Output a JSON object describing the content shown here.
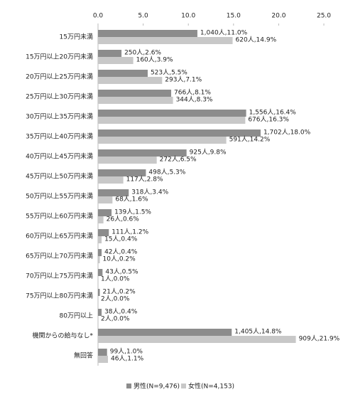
{
  "chart_data": {
    "type": "hbar",
    "categories": [
      "15万円未満",
      "15万円以上20万円未満",
      "20万円以上25万円未満",
      "25万円以上30万円未満",
      "30万円以上35万円未満",
      "35万円以上40万円未満",
      "40万円以上45万円未満",
      "45万円以上50万円未満",
      "50万円以上55万円未満",
      "55万円以上60万円未満",
      "60万円以上65万円未満",
      "65万円以上70万円未満",
      "70万円以上75万円未満",
      "75万円以上80万円未満",
      "80万円以上",
      "機関からの給与なし*",
      "無回答"
    ],
    "series": [
      {
        "name": "男性(N=9,476)",
        "color": "#8c8c8c",
        "values": [
          11.0,
          2.6,
          5.5,
          8.1,
          16.4,
          18.0,
          9.8,
          5.3,
          3.4,
          1.5,
          1.2,
          0.4,
          0.5,
          0.2,
          0.4,
          14.8,
          1.0
        ],
        "value_labels": [
          "1,040人,11.0%",
          "250人,2.6%",
          "523人,5.5%",
          "766人,8.1%",
          "1,556人,16.4%",
          "1,702人,18.0%",
          "925人,9.8%",
          "498人,5.3%",
          "318人,3.4%",
          "139人,1.5%",
          "111人,1.2%",
          "42人,0.4%",
          "43人,0.5%",
          "21人,0.2%",
          "38人,0.4%",
          "1,405人,14.8%",
          "99人,1.0%"
        ]
      },
      {
        "name": "女性(N=4,153)",
        "color": "#c8c8c8",
        "values": [
          14.9,
          3.9,
          7.1,
          8.3,
          16.3,
          14.2,
          6.5,
          2.8,
          1.6,
          0.6,
          0.4,
          0.2,
          0.0,
          0.0,
          0.0,
          21.9,
          1.1
        ],
        "value_labels": [
          "620人,14.9%",
          "160人,3.9%",
          "293人,7.1%",
          "344人,8.3%",
          "676人,16.3%",
          "591人,14.2%",
          "272人,6.5%",
          "117人,2.8%",
          "68人,1.6%",
          "26人,0.6%",
          "15人,0.4%",
          "10人,0.2%",
          "1人,0.0%",
          "2人,0.0%",
          "2人,0.0%",
          "909人,21.9%",
          "46人,1.1%"
        ]
      }
    ],
    "xlim": [
      0,
      25
    ],
    "xticks": [
      {
        "value": 0,
        "label": "0.0"
      },
      {
        "value": 5,
        "label": "5.0"
      },
      {
        "value": 10,
        "label": "10.0"
      },
      {
        "value": 15,
        "label": "15.0"
      },
      {
        "value": 20,
        "label": "20.0"
      },
      {
        "value": 25,
        "label": "25.0"
      }
    ],
    "grid": false,
    "legend": "bottom"
  }
}
